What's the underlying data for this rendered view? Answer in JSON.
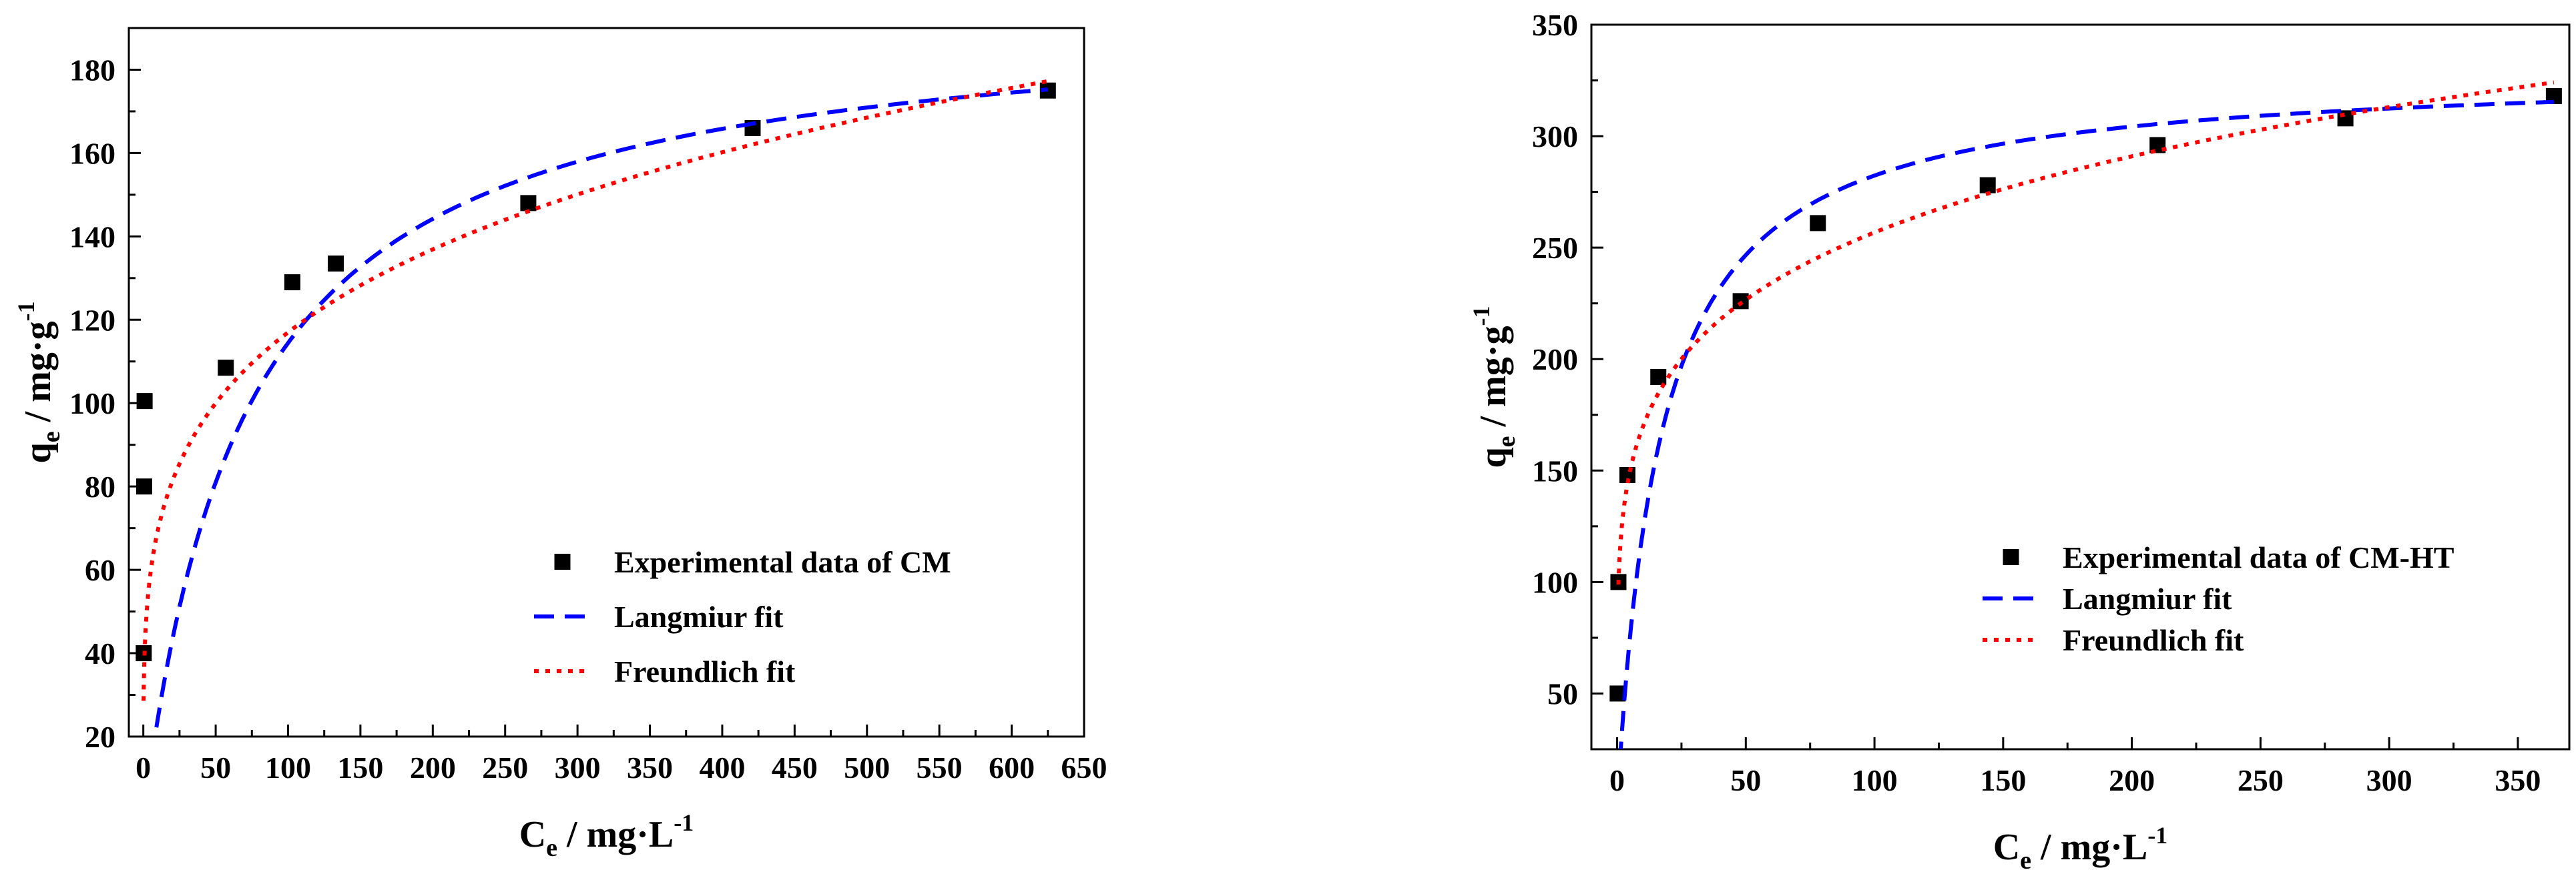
{
  "chart_data": [
    {
      "type": "scatter",
      "title": "",
      "xlabel": {
        "main": "C",
        "sub": "e",
        "rest": " / mg·L",
        "sup": "-1"
      },
      "ylabel": {
        "main": "q",
        "sub": "e",
        "rest": " / mg·g",
        "sup": "-1"
      },
      "xlim": [
        -10,
        650
      ],
      "ylim": [
        20,
        190
      ],
      "xticks": [
        0,
        50,
        100,
        150,
        200,
        250,
        300,
        350,
        400,
        450,
        500,
        550,
        600,
        650
      ],
      "yticks": [
        20,
        40,
        60,
        80,
        100,
        120,
        140,
        160,
        180
      ],
      "grid": false,
      "legend_position": "bottom-right",
      "series": [
        {
          "name": "Experimental data of CM",
          "kind": "markers",
          "color": "#000000",
          "x": [
            0.3,
            0.6,
            0.9,
            57,
            103,
            133,
            266,
            421,
            625
          ],
          "y": [
            40,
            80,
            100.5,
            108.5,
            129,
            133.5,
            148,
            166,
            175
          ]
        },
        {
          "name": "Langmiur fit",
          "kind": "dashed-line",
          "color": "#0000FF",
          "model": "langmuir",
          "params": {
            "qm": 195,
            "KL": 0.0142
          },
          "x_range": [
            0.15,
            625
          ]
        },
        {
          "name": "Freundlich fit",
          "kind": "dotted-line",
          "color": "#FF0000",
          "model": "freundlich",
          "params": {
            "KF": 41.17,
            "n": 4.41
          },
          "x_range": [
            0.2,
            625
          ]
        }
      ]
    },
    {
      "type": "scatter",
      "title": "",
      "xlabel": {
        "main": "C",
        "sub": "e",
        "rest": " / mg·L",
        "sup": "-1"
      },
      "ylabel": {
        "main": "q",
        "sub": "e",
        "rest": " / mg·g",
        "sup": "-1"
      },
      "xlim": [
        -10,
        370
      ],
      "ylim": [
        25,
        350
      ],
      "xticks": [
        0,
        50,
        100,
        150,
        200,
        250,
        300,
        350
      ],
      "yticks": [
        50,
        100,
        150,
        200,
        250,
        300,
        350
      ],
      "grid": false,
      "legend_position": "bottom-right",
      "series": [
        {
          "name": "Experimental data of CM-HT",
          "kind": "markers",
          "color": "#000000",
          "x": [
            0.2,
            0.5,
            4,
            16,
            48,
            78,
            144,
            210,
            283,
            364
          ],
          "y": [
            50,
            100,
            148,
            192,
            226,
            261,
            278,
            296,
            308,
            318
          ]
        },
        {
          "name": "Langmiur fit",
          "kind": "dashed-line",
          "color": "#0000FF",
          "model": "langmuir",
          "params": {
            "qm": 330,
            "KL": 0.0592
          },
          "x_range": [
            0.3,
            364
          ]
        },
        {
          "name": "Freundlich fit",
          "kind": "dotted-line",
          "color": "#FF0000",
          "model": "freundlich",
          "params": {
            "KF": 112,
            "n": 5.55
          },
          "x_range": [
            0.5,
            364
          ]
        }
      ]
    }
  ]
}
